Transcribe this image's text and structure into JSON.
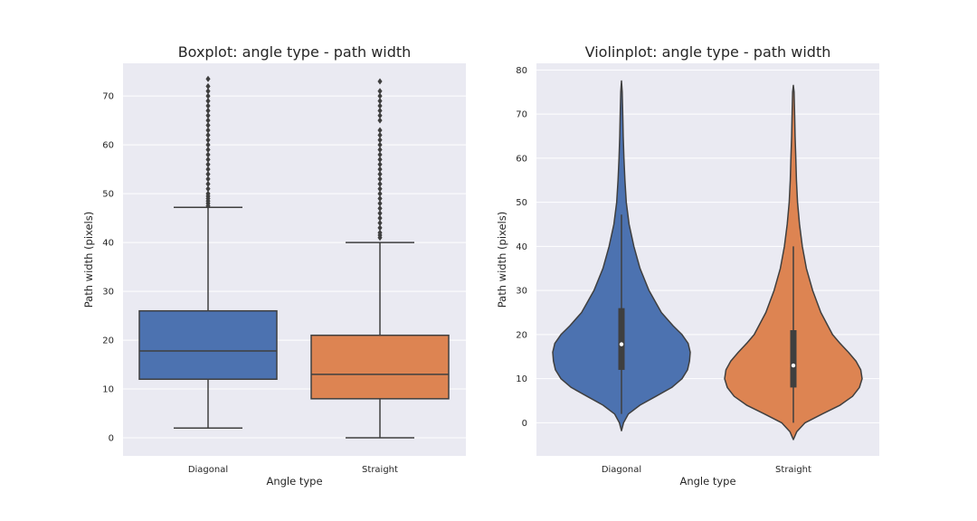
{
  "chart_data": [
    {
      "type": "box",
      "title": "Boxplot: angle type - path width",
      "xlabel": "Angle type",
      "ylabel": "Path width (pixels)",
      "ylim": [
        -3.7,
        76.7
      ],
      "yticks": [
        0,
        10,
        20,
        30,
        40,
        50,
        60,
        70
      ],
      "grid": true,
      "categories": [
        "Diagonal",
        "Straight"
      ],
      "series": [
        {
          "name": "Diagonal",
          "color": "#4c72b0",
          "min": 2,
          "q1": 12,
          "median": 17.8,
          "q3": 26,
          "whisker_high": 47.2,
          "max": 73.5,
          "outliers": [
            47.5,
            48,
            48.5,
            49,
            49.5,
            50,
            51,
            52,
            53,
            54,
            55,
            56,
            57,
            58,
            59,
            60,
            61,
            62,
            63,
            64,
            65,
            66,
            67,
            68,
            69,
            70,
            71,
            72,
            73.5
          ]
        },
        {
          "name": "Straight",
          "color": "#dd8452",
          "min": 0,
          "q1": 8,
          "median": 13,
          "q3": 21,
          "whisker_high": 40,
          "max": 73,
          "outliers": [
            41,
            41.5,
            42,
            43,
            44,
            45,
            46,
            47,
            48,
            49,
            50,
            51,
            52,
            53,
            54,
            55,
            56,
            57,
            58,
            59,
            60,
            61,
            62,
            63,
            65,
            66,
            67,
            68,
            69,
            70,
            71,
            73
          ]
        }
      ]
    },
    {
      "type": "violin",
      "title": "Violinplot: angle type - path width",
      "xlabel": "Angle type",
      "ylabel": "Path width (pixels)",
      "ylim": [
        -7.5,
        81.5
      ],
      "yticks": [
        0,
        10,
        20,
        30,
        40,
        50,
        60,
        70,
        80
      ],
      "grid": true,
      "categories": [
        "Diagonal",
        "Straight"
      ],
      "series": [
        {
          "name": "Diagonal",
          "color": "#4c72b0",
          "y_range": [
            -1.8,
            77.5
          ],
          "density_profile": [
            [
              -1.8,
              0.0
            ],
            [
              0,
              0.03
            ],
            [
              2,
              0.1
            ],
            [
              4,
              0.27
            ],
            [
              6,
              0.5
            ],
            [
              8,
              0.73
            ],
            [
              10,
              0.88
            ],
            [
              12,
              0.96
            ],
            [
              14,
              0.99
            ],
            [
              16,
              1.0
            ],
            [
              18,
              0.97
            ],
            [
              20,
              0.88
            ],
            [
              22,
              0.75
            ],
            [
              25,
              0.58
            ],
            [
              30,
              0.4
            ],
            [
              35,
              0.27
            ],
            [
              40,
              0.18
            ],
            [
              45,
              0.11
            ],
            [
              50,
              0.07
            ],
            [
              55,
              0.05
            ],
            [
              60,
              0.035
            ],
            [
              65,
              0.025
            ],
            [
              70,
              0.018
            ],
            [
              75,
              0.01
            ],
            [
              77.5,
              0.0
            ]
          ],
          "q1": 12,
          "median": 17.8,
          "q3": 26,
          "whisker_low": 2,
          "whisker_high": 47.2
        },
        {
          "name": "Straight",
          "color": "#dd8452",
          "y_range": [
            -3.8,
            76.5
          ],
          "density_profile": [
            [
              -3.8,
              0.0
            ],
            [
              -2,
              0.05
            ],
            [
              0,
              0.17
            ],
            [
              2,
              0.42
            ],
            [
              4,
              0.68
            ],
            [
              6,
              0.86
            ],
            [
              8,
              0.96
            ],
            [
              10,
              1.0
            ],
            [
              12,
              0.98
            ],
            [
              14,
              0.91
            ],
            [
              16,
              0.8
            ],
            [
              18,
              0.68
            ],
            [
              20,
              0.57
            ],
            [
              25,
              0.4
            ],
            [
              30,
              0.28
            ],
            [
              35,
              0.19
            ],
            [
              40,
              0.13
            ],
            [
              45,
              0.09
            ],
            [
              50,
              0.06
            ],
            [
              55,
              0.045
            ],
            [
              60,
              0.035
            ],
            [
              65,
              0.025
            ],
            [
              70,
              0.018
            ],
            [
              75,
              0.01
            ],
            [
              76.5,
              0.0
            ]
          ],
          "q1": 8,
          "median": 13,
          "q3": 21,
          "whisker_low": 0,
          "whisker_high": 40
        }
      ]
    }
  ]
}
